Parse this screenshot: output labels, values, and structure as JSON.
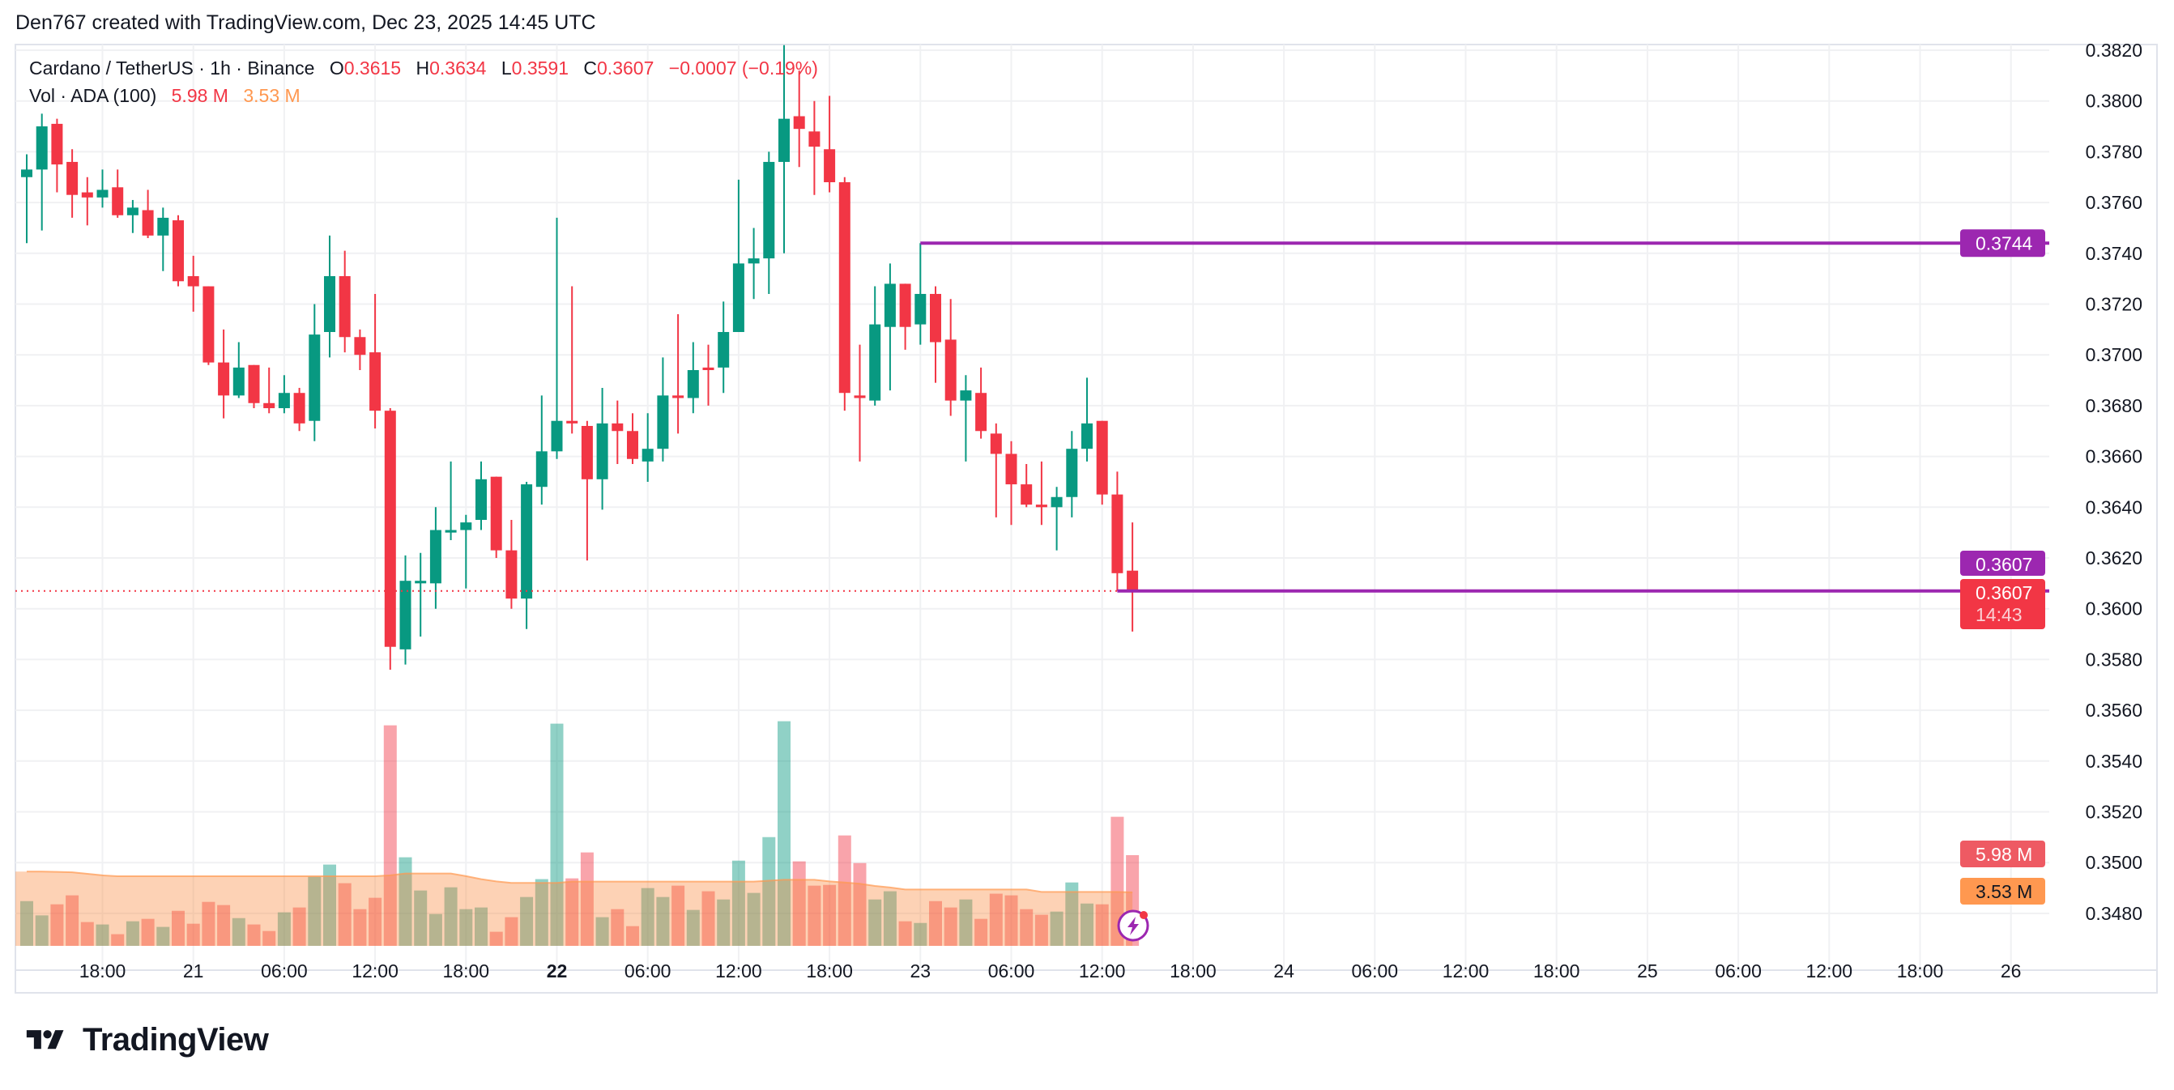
{
  "header": {
    "attribution": "Den767 created with TradingView.com, Dec 23, 2025 14:45 UTC"
  },
  "legend": {
    "symbol": "Cardano / TetherUS · 1h · Binance",
    "o_label": "O",
    "o": "0.3615",
    "h_label": "H",
    "h": "0.3634",
    "l_label": "L",
    "l": "0.3591",
    "c_label": "C",
    "c": "0.3607",
    "change": "−0.0007 (−0.19%)",
    "vol_label": "Vol · ADA (100)",
    "vol": "5.98 M",
    "vol_ma": "3.53 M"
  },
  "price_axis": {
    "ticks": [
      "0.3820",
      "0.3800",
      "0.3780",
      "0.3760",
      "0.3740",
      "0.3720",
      "0.3700",
      "0.3680",
      "0.3660",
      "0.3640",
      "0.3620",
      "0.3600",
      "0.3580",
      "0.3560",
      "0.3540",
      "0.3520",
      "0.3500",
      "0.3480"
    ]
  },
  "time_axis": {
    "ticks": [
      {
        "label": "18:00",
        "hour": 5
      },
      {
        "label": "21",
        "hour": 11
      },
      {
        "label": "06:00",
        "hour": 17
      },
      {
        "label": "12:00",
        "hour": 23
      },
      {
        "label": "18:00",
        "hour": 29
      },
      {
        "label": "22",
        "hour": 35,
        "bold": true
      },
      {
        "label": "06:00",
        "hour": 41
      },
      {
        "label": "12:00",
        "hour": 47
      },
      {
        "label": "18:00",
        "hour": 53
      },
      {
        "label": "23",
        "hour": 59
      },
      {
        "label": "06:00",
        "hour": 65
      },
      {
        "label": "12:00",
        "hour": 71
      },
      {
        "label": "18:00",
        "hour": 77
      },
      {
        "label": "24",
        "hour": 83
      },
      {
        "label": "06:00",
        "hour": 89
      },
      {
        "label": "12:00",
        "hour": 95
      },
      {
        "label": "18:00",
        "hour": 101
      },
      {
        "label": "25",
        "hour": 107
      },
      {
        "label": "06:00",
        "hour": 113
      },
      {
        "label": "12:00",
        "hour": 119
      },
      {
        "label": "18:00",
        "hour": 125
      },
      {
        "label": "26",
        "hour": 131
      }
    ]
  },
  "tags": {
    "line_high": "0.3744",
    "line_low": "0.3607",
    "last_price": "0.3607",
    "countdown": "14:43",
    "vol": "5.98 M",
    "vol_ma": "3.53 M"
  },
  "branding": {
    "logo": "TradingView"
  },
  "colors": {
    "up": "#089981",
    "down": "#f23645",
    "line": "#9c27b0",
    "vol_ma": "#ff9850",
    "grid": "#f0f1f3"
  },
  "chart_data": {
    "type": "candlestick",
    "interval": "1h",
    "first_bar": "Dec 20 13:00",
    "ylim": [
      0.347,
      0.3836
    ],
    "ohlc": [
      [
        0.377,
        0.3779,
        0.3744,
        0.3773
      ],
      [
        0.3773,
        0.3795,
        0.3749,
        0.379
      ],
      [
        0.3791,
        0.3793,
        0.3764,
        0.3775
      ],
      [
        0.3776,
        0.3781,
        0.3754,
        0.3763
      ],
      [
        0.3764,
        0.377,
        0.3751,
        0.3762
      ],
      [
        0.3762,
        0.3773,
        0.3758,
        0.3765
      ],
      [
        0.3766,
        0.3773,
        0.3754,
        0.3755
      ],
      [
        0.3755,
        0.3761,
        0.3748,
        0.3758
      ],
      [
        0.3757,
        0.3765,
        0.3746,
        0.3747
      ],
      [
        0.3747,
        0.3758,
        0.3733,
        0.3754
      ],
      [
        0.3753,
        0.3755,
        0.3727,
        0.3729
      ],
      [
        0.3731,
        0.3739,
        0.3717,
        0.3727
      ],
      [
        0.3727,
        0.3727,
        0.3696,
        0.3697
      ],
      [
        0.3697,
        0.371,
        0.3675,
        0.3684
      ],
      [
        0.3684,
        0.3705,
        0.3683,
        0.3695
      ],
      [
        0.3696,
        0.3696,
        0.3679,
        0.3681
      ],
      [
        0.3681,
        0.3695,
        0.3677,
        0.3679
      ],
      [
        0.3679,
        0.3692,
        0.3677,
        0.3685
      ],
      [
        0.3685,
        0.3687,
        0.367,
        0.3673
      ],
      [
        0.3674,
        0.372,
        0.3666,
        0.3708
      ],
      [
        0.3709,
        0.3747,
        0.3699,
        0.3731
      ],
      [
        0.3731,
        0.3741,
        0.3701,
        0.3707
      ],
      [
        0.3707,
        0.371,
        0.3694,
        0.37
      ],
      [
        0.3701,
        0.3724,
        0.3671,
        0.3678
      ],
      [
        0.3678,
        0.3679,
        0.3576,
        0.3585
      ],
      [
        0.3584,
        0.3621,
        0.3578,
        0.3611
      ],
      [
        0.361,
        0.3622,
        0.3589,
        0.3611
      ],
      [
        0.361,
        0.364,
        0.36,
        0.3631
      ],
      [
        0.363,
        0.3658,
        0.3627,
        0.3631
      ],
      [
        0.3631,
        0.3637,
        0.3608,
        0.3634
      ],
      [
        0.3635,
        0.3658,
        0.3631,
        0.3651
      ],
      [
        0.3652,
        0.3652,
        0.362,
        0.3623
      ],
      [
        0.3623,
        0.3635,
        0.36,
        0.3604
      ],
      [
        0.3604,
        0.365,
        0.3592,
        0.3649
      ],
      [
        0.3648,
        0.3684,
        0.3641,
        0.3662
      ],
      [
        0.3662,
        0.3754,
        0.3659,
        0.3674
      ],
      [
        0.3674,
        0.3727,
        0.3669,
        0.3673
      ],
      [
        0.3672,
        0.3674,
        0.3619,
        0.3651
      ],
      [
        0.3651,
        0.3687,
        0.3639,
        0.3673
      ],
      [
        0.3673,
        0.3682,
        0.3657,
        0.367
      ],
      [
        0.367,
        0.3677,
        0.3657,
        0.3659
      ],
      [
        0.3658,
        0.3677,
        0.365,
        0.3663
      ],
      [
        0.3663,
        0.3699,
        0.3658,
        0.3684
      ],
      [
        0.3684,
        0.3716,
        0.3669,
        0.3683
      ],
      [
        0.3683,
        0.3705,
        0.3677,
        0.3694
      ],
      [
        0.3695,
        0.3704,
        0.368,
        0.3694
      ],
      [
        0.3695,
        0.3721,
        0.3685,
        0.3709
      ],
      [
        0.3709,
        0.3769,
        0.3709,
        0.3736
      ],
      [
        0.3736,
        0.375,
        0.3722,
        0.3738
      ],
      [
        0.3738,
        0.378,
        0.3724,
        0.3776
      ],
      [
        0.3776,
        0.3822,
        0.374,
        0.3793
      ],
      [
        0.3794,
        0.3812,
        0.3774,
        0.3789
      ],
      [
        0.3788,
        0.38,
        0.3763,
        0.3782
      ],
      [
        0.3781,
        0.3802,
        0.3764,
        0.3768
      ],
      [
        0.3768,
        0.377,
        0.3678,
        0.3685
      ],
      [
        0.3684,
        0.3704,
        0.3658,
        0.3683
      ],
      [
        0.3682,
        0.3727,
        0.368,
        0.3712
      ],
      [
        0.3711,
        0.3736,
        0.3686,
        0.3728
      ],
      [
        0.3728,
        0.3728,
        0.3702,
        0.3711
      ],
      [
        0.3712,
        0.3744,
        0.3704,
        0.3724
      ],
      [
        0.3724,
        0.3727,
        0.3689,
        0.3705
      ],
      [
        0.3706,
        0.3722,
        0.3676,
        0.3682
      ],
      [
        0.3682,
        0.3692,
        0.3658,
        0.3686
      ],
      [
        0.3685,
        0.3695,
        0.3667,
        0.367
      ],
      [
        0.3669,
        0.3673,
        0.3636,
        0.3661
      ],
      [
        0.3661,
        0.3666,
        0.3633,
        0.3649
      ],
      [
        0.3649,
        0.3657,
        0.364,
        0.3641
      ],
      [
        0.3641,
        0.3658,
        0.3633,
        0.364
      ],
      [
        0.364,
        0.3648,
        0.3623,
        0.3644
      ],
      [
        0.3644,
        0.367,
        0.3636,
        0.3663
      ],
      [
        0.3663,
        0.3691,
        0.3658,
        0.3673
      ],
      [
        0.3674,
        0.3674,
        0.3641,
        0.3645
      ],
      [
        0.3645,
        0.3654,
        0.3607,
        0.3614
      ],
      [
        0.3615,
        0.3634,
        0.3591,
        0.3607
      ]
    ],
    "volume_millions": [
      2.95,
      2.01,
      2.74,
      3.33,
      1.57,
      1.41,
      0.77,
      1.62,
      1.78,
      1.25,
      2.31,
      1.46,
      2.9,
      2.69,
      1.83,
      1.41,
      0.98,
      2.21,
      2.53,
      4.56,
      5.36,
      4.13,
      2.42,
      3.17,
      14.54,
      5.84,
      3.65,
      2.1,
      3.86,
      2.42,
      2.53,
      0.93,
      1.89,
      3.22,
      4.4,
      14.65,
      4.45,
      6.16,
      1.89,
      2.42,
      1.3,
      3.81,
      3.22,
      3.97,
      2.37,
      3.6,
      3.06,
      5.62,
      3.49,
      7.17,
      14.81,
      5.57,
      3.97,
      4.02,
      7.28,
      5.46,
      3.06,
      3.6,
      1.62,
      1.51,
      2.95,
      2.53,
      3.06,
      1.78,
      3.44,
      3.33,
      2.42,
      2.05,
      2.26,
      4.18,
      2.79,
      2.74,
      8.51,
      5.98
    ],
    "volume_ma_millions": [
      4.9,
      4.9,
      4.88,
      4.85,
      4.75,
      4.65,
      4.59,
      4.59,
      4.59,
      4.59,
      4.59,
      4.59,
      4.59,
      4.59,
      4.59,
      4.59,
      4.59,
      4.59,
      4.59,
      4.59,
      4.59,
      4.59,
      4.59,
      4.59,
      4.65,
      4.77,
      4.77,
      4.77,
      4.77,
      4.6,
      4.4,
      4.25,
      4.15,
      4.15,
      4.15,
      4.15,
      4.24,
      4.24,
      4.24,
      4.24,
      4.24,
      4.24,
      4.24,
      4.24,
      4.24,
      4.24,
      4.24,
      4.24,
      4.24,
      4.3,
      4.36,
      4.36,
      4.36,
      4.25,
      4.18,
      4.1,
      3.95,
      3.85,
      3.72,
      3.72,
      3.72,
      3.72,
      3.72,
      3.72,
      3.72,
      3.72,
      3.72,
      3.56,
      3.56,
      3.56,
      3.56,
      3.56,
      3.56,
      3.53
    ],
    "horizontal_lines": [
      {
        "price": 0.3744,
        "start_bar": 59
      },
      {
        "price": 0.3607,
        "start_bar": 72
      }
    ],
    "last_price": 0.3607
  }
}
